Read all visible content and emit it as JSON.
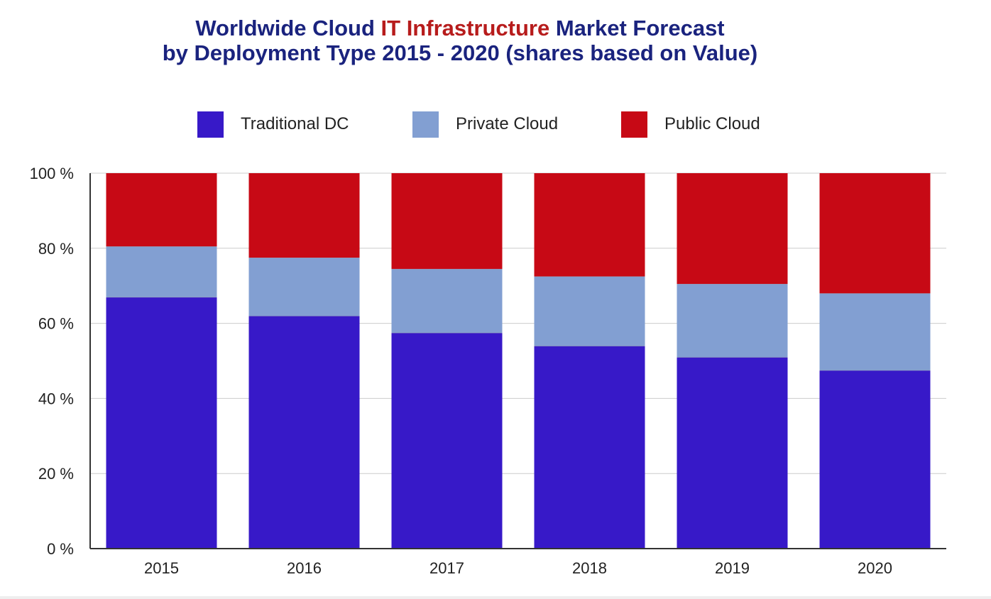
{
  "title": {
    "line1_pre": "Worldwide Cloud ",
    "line1_accent": "IT Infrastructure",
    "line1_post": " Market Forecast",
    "line2": "by Deployment Type  2015 - 2020 (shares based on Value)",
    "color_main": "#1a237e",
    "color_accent": "#b71c1c"
  },
  "legend": [
    {
      "label": "Traditional DC",
      "color": "#3719c8"
    },
    {
      "label": "Private Cloud",
      "color": "#829fd2"
    },
    {
      "label": "Public Cloud",
      "color": "#c70915"
    }
  ],
  "chart_data": {
    "type": "bar",
    "stacked": true,
    "categories": [
      "2015",
      "2016",
      "2017",
      "2018",
      "2019",
      "2020"
    ],
    "series": [
      {
        "name": "Traditional DC",
        "color": "#3719c8",
        "values": [
          67,
          62,
          57.5,
          54,
          51,
          47.5
        ]
      },
      {
        "name": "Private Cloud",
        "color": "#829fd2",
        "values": [
          13.5,
          15.5,
          17,
          18.5,
          19.5,
          20.5
        ]
      },
      {
        "name": "Public Cloud",
        "color": "#c70915",
        "values": [
          19.5,
          22.5,
          25.5,
          27.5,
          29.5,
          32
        ]
      }
    ],
    "ylim": [
      0,
      100
    ],
    "yticks": [
      0,
      20,
      40,
      60,
      80,
      100
    ],
    "ytick_labels": [
      "0 %",
      "20 %",
      "40 %",
      "60 %",
      "80 %",
      "100 %"
    ],
    "xlabel": "",
    "ylabel": "",
    "grid": true,
    "legend_position": "top"
  }
}
